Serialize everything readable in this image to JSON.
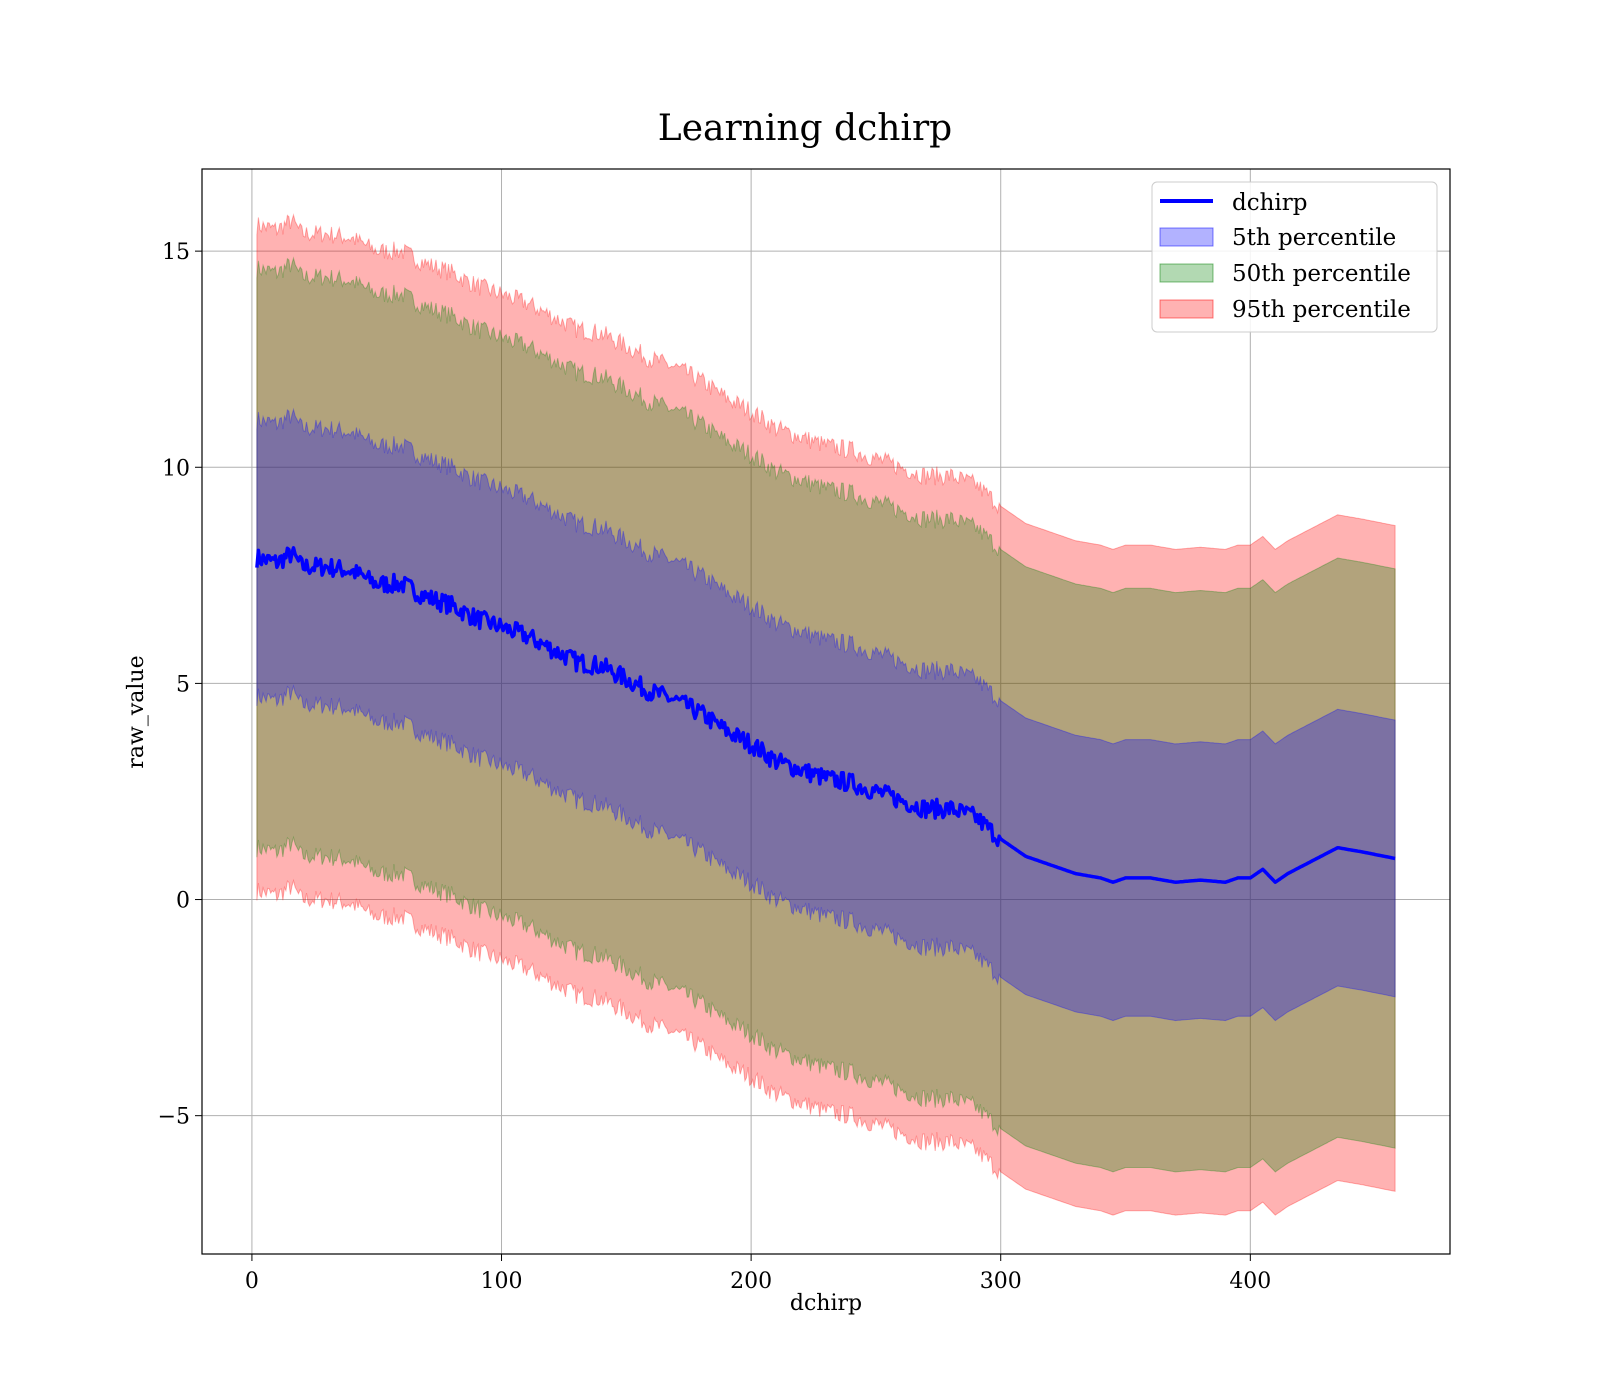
{
  "chart_data": {
    "type": "line",
    "title": "Learning dchirp",
    "xlabel": "dchirp",
    "ylabel": "raw_value",
    "xlim": [
      -20,
      480
    ],
    "ylim": [
      -8.2,
      16.9
    ],
    "xticks": [
      0,
      100,
      200,
      300,
      400
    ],
    "yticks": [
      -5,
      0,
      5,
      10,
      15
    ],
    "ytick_labels": [
      "−5",
      "0",
      "5",
      "10",
      "15"
    ],
    "grid": true,
    "legend_position": "top-right",
    "line": {
      "name": "dchirp",
      "color": "#0000ff",
      "x": [
        2,
        10,
        16,
        20,
        30,
        40,
        50,
        60,
        70,
        80,
        90,
        100,
        110,
        120,
        130,
        140,
        150,
        160,
        170,
        180,
        190,
        200,
        210,
        220,
        230,
        240,
        250,
        260,
        270,
        280,
        290,
        300,
        310,
        320,
        330,
        340,
        345,
        350,
        360,
        370,
        380,
        390,
        395,
        400,
        405,
        410,
        415,
        425,
        435,
        445,
        458
      ],
      "y": [
        7.9,
        7.8,
        8.0,
        7.7,
        7.7,
        7.6,
        7.3,
        7.3,
        7.0,
        6.8,
        6.5,
        6.3,
        6.1,
        5.8,
        5.5,
        5.4,
        5.1,
        4.8,
        4.6,
        4.3,
        3.9,
        3.6,
        3.2,
        3.0,
        2.8,
        2.7,
        2.5,
        2.3,
        2.1,
        2.1,
        1.9,
        1.4,
        1.0,
        0.8,
        0.6,
        0.5,
        0.4,
        0.5,
        0.5,
        0.4,
        0.45,
        0.4,
        0.5,
        0.5,
        0.7,
        0.4,
        0.6,
        0.9,
        1.2,
        1.1,
        0.95
      ]
    },
    "series": [
      {
        "name": "5th percentile",
        "color": "#0000ff",
        "alpha": 0.3,
        "lower_offset": -3.2,
        "upper_offset": 3.2
      },
      {
        "name": "50th percentile",
        "color": "#008000",
        "alpha": 0.3,
        "lower_offset": -6.7,
        "upper_offset": 6.7
      },
      {
        "name": "95th percentile",
        "color": "#ff0000",
        "alpha": 0.3,
        "lower_offset": -7.7,
        "upper_offset": 7.7
      }
    ]
  }
}
